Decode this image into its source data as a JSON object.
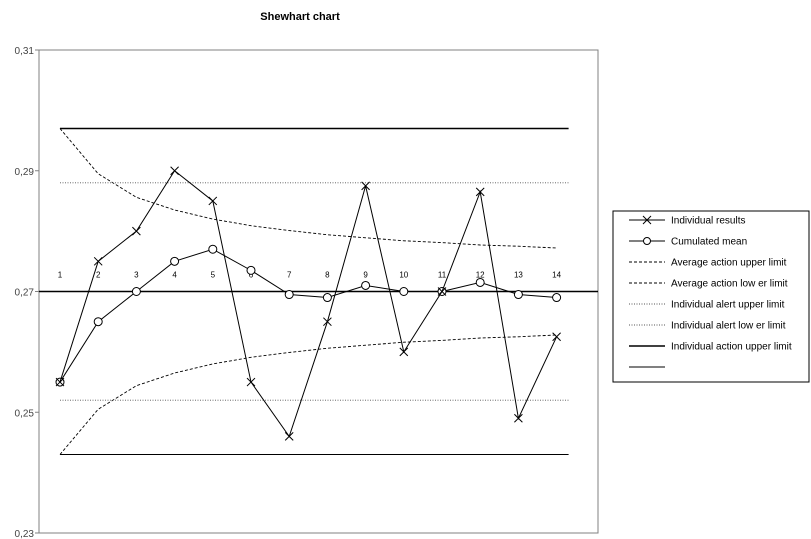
{
  "chart_data": {
    "type": "line",
    "title": "Shewhart chart",
    "xlabel": "",
    "ylabel": "",
    "x": [
      1,
      2,
      3,
      4,
      5,
      6,
      7,
      8,
      9,
      10,
      11,
      12,
      13,
      14
    ],
    "ylim": [
      0.23,
      0.31
    ],
    "yticks": [
      "0,23",
      "0,25",
      "0,27",
      "0,29",
      "0,31"
    ],
    "ytick_values": [
      0.23,
      0.25,
      0.27,
      0.29,
      0.31
    ],
    "legend_position": "right",
    "grid": false,
    "series": [
      {
        "name": "Individual results",
        "marker": "x",
        "style": "solid",
        "values": [
          0.255,
          0.275,
          0.28,
          0.29,
          0.285,
          0.255,
          0.246,
          0.265,
          0.2875,
          0.26,
          0.27,
          0.2865,
          0.249,
          0.2625
        ]
      },
      {
        "name": "Cumulated mean",
        "marker": "circle",
        "style": "solid",
        "values": [
          0.255,
          0.265,
          0.27,
          0.275,
          0.277,
          0.2735,
          0.2695,
          0.269,
          0.271,
          0.27,
          0.27,
          0.2715,
          0.2695,
          0.269
        ]
      },
      {
        "name": "Average action upper limit",
        "marker": "none",
        "style": "dashed",
        "values": [
          0.297,
          0.2895,
          0.2856,
          0.2835,
          0.282,
          0.2809,
          0.2801,
          0.2794,
          0.2789,
          0.2784,
          0.2781,
          0.2777,
          0.2775,
          0.2772
        ]
      },
      {
        "name": "Average action low er limit",
        "marker": "none",
        "style": "dashed",
        "values": [
          0.243,
          0.2505,
          0.2544,
          0.2565,
          0.258,
          0.2591,
          0.2599,
          0.2606,
          0.2611,
          0.2616,
          0.2619,
          0.2623,
          0.2625,
          0.2628
        ]
      },
      {
        "name": "Individual alert upper limit",
        "marker": "none",
        "style": "dotted",
        "values": [
          0.288,
          0.288,
          0.288,
          0.288,
          0.288,
          0.288,
          0.288,
          0.288,
          0.288,
          0.288,
          0.288,
          0.288,
          0.288,
          0.288
        ]
      },
      {
        "name": "Individual alert low er limit",
        "marker": "none",
        "style": "dotted",
        "values": [
          0.252,
          0.252,
          0.252,
          0.252,
          0.252,
          0.252,
          0.252,
          0.252,
          0.252,
          0.252,
          0.252,
          0.252,
          0.252,
          0.252
        ]
      },
      {
        "name": "Individual action upper limit",
        "marker": "none",
        "style": "solid-thick",
        "values": [
          0.297,
          0.297,
          0.297,
          0.297,
          0.297,
          0.297,
          0.297,
          0.297,
          0.297,
          0.297,
          0.297,
          0.297,
          0.297,
          0.297
        ]
      },
      {
        "name": "",
        "marker": "none",
        "style": "solid-thin",
        "values": [
          0.243,
          0.243,
          0.243,
          0.243,
          0.243,
          0.243,
          0.243,
          0.243,
          0.243,
          0.243,
          0.243,
          0.243,
          0.243,
          0.243
        ]
      }
    ],
    "reference_line": {
      "value": 0.27
    }
  }
}
